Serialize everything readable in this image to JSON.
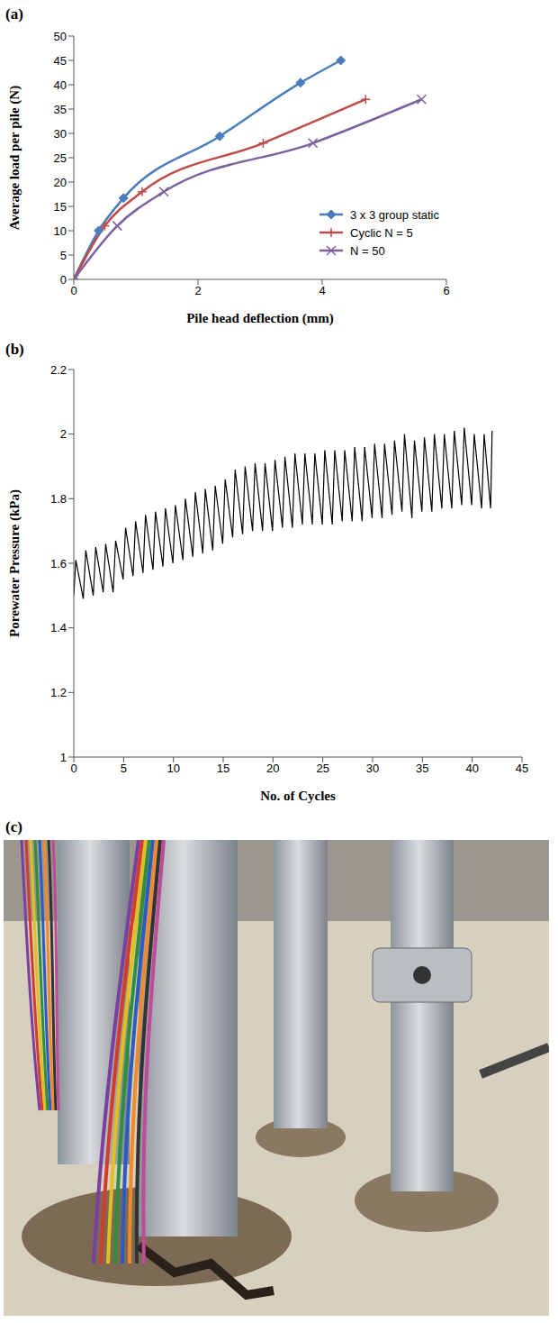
{
  "chart_data": [
    {
      "panel": "(a)",
      "type": "line",
      "x_label": "Pile head deflection (mm)",
      "y_label": "Average load per pile (N)",
      "xlim": [
        0,
        6
      ],
      "xticks": [
        0,
        2,
        4,
        6
      ],
      "ylim": [
        0,
        50
      ],
      "yticks": [
        0,
        5,
        10,
        15,
        20,
        25,
        30,
        35,
        40,
        45,
        50
      ],
      "grid": false,
      "legend": "lower right",
      "series": [
        {
          "name": "3 x 3 group static",
          "color": "#4a7ebb",
          "marker": "diamond",
          "line_style": "smooth",
          "x": [
            0,
            0.4,
            0.8,
            2.35,
            3.65,
            4.3
          ],
          "values": [
            0,
            10,
            16.7,
            29.4,
            40.4,
            45
          ]
        },
        {
          "name": "Cyclic N = 5",
          "color": "#be4b48",
          "marker": "plus",
          "line_style": "smooth",
          "x": [
            0,
            0.5,
            1.1,
            3.05,
            4.7
          ],
          "values": [
            0,
            11,
            18,
            28,
            37
          ]
        },
        {
          "name": "N = 50",
          "color": "#7d60a0",
          "marker": "x",
          "line_style": "smooth",
          "x": [
            0,
            0.7,
            1.45,
            3.85,
            5.6
          ],
          "values": [
            0,
            11,
            18,
            28,
            37
          ]
        }
      ]
    },
    {
      "panel": "(b)",
      "type": "line",
      "x_label": "No. of Cycles",
      "y_label": "Porewater Pressure (kPa)",
      "xlim": [
        0,
        45
      ],
      "xticks": [
        0,
        5,
        10,
        15,
        20,
        25,
        30,
        35,
        40,
        45
      ],
      "ylim": [
        1,
        2.2
      ],
      "yticks": [
        1,
        1.2,
        1.4,
        1.6,
        1.8,
        2,
        2.2
      ],
      "grid": false,
      "series": [
        {
          "color": "#000000",
          "marker": "none",
          "line_style": "solid",
          "x": [
            0,
            0.2,
            0.95,
            1.2,
            1.95,
            2.2,
            2.95,
            3.2,
            3.95,
            4.2,
            4.95,
            5.2,
            5.95,
            6.2,
            6.95,
            7.2,
            7.95,
            8.2,
            8.95,
            9.2,
            9.95,
            10.2,
            10.95,
            11.2,
            11.95,
            12.2,
            12.95,
            13.2,
            13.95,
            14.2,
            14.95,
            15.2,
            15.95,
            16.2,
            16.95,
            17.2,
            17.95,
            18.2,
            18.95,
            19.2,
            19.95,
            20.2,
            20.95,
            21.2,
            21.95,
            22.2,
            22.95,
            23.2,
            23.95,
            24.2,
            24.95,
            25.2,
            25.95,
            26.2,
            26.95,
            27.2,
            27.95,
            28.2,
            28.95,
            29.2,
            29.95,
            30.2,
            30.95,
            31.2,
            31.95,
            32.2,
            32.95,
            33.2,
            33.95,
            34.2,
            34.95,
            35.2,
            35.95,
            36.2,
            36.95,
            37.2,
            37.95,
            38.2,
            38.95,
            39.2,
            39.95,
            40.2,
            40.95,
            41.2,
            41.85,
            42
          ],
          "values": [
            1.5,
            1.61,
            1.49,
            1.64,
            1.5,
            1.65,
            1.51,
            1.66,
            1.51,
            1.67,
            1.55,
            1.71,
            1.56,
            1.73,
            1.57,
            1.75,
            1.58,
            1.76,
            1.59,
            1.77,
            1.6,
            1.78,
            1.61,
            1.8,
            1.62,
            1.82,
            1.63,
            1.83,
            1.64,
            1.84,
            1.66,
            1.86,
            1.68,
            1.89,
            1.69,
            1.9,
            1.7,
            1.91,
            1.7,
            1.91,
            1.7,
            1.92,
            1.71,
            1.93,
            1.71,
            1.94,
            1.72,
            1.94,
            1.72,
            1.94,
            1.72,
            1.95,
            1.72,
            1.95,
            1.73,
            1.95,
            1.73,
            1.96,
            1.73,
            1.96,
            1.74,
            1.97,
            1.74,
            1.97,
            1.75,
            1.98,
            1.76,
            2.0,
            1.74,
            1.98,
            1.76,
            1.99,
            1.76,
            2.0,
            1.77,
            2.0,
            1.77,
            2.01,
            1.78,
            2.02,
            1.78,
            2.0,
            1.77,
            2.0,
            1.77,
            2.01
          ]
        }
      ]
    }
  ],
  "photo": {
    "panel": "(c)"
  }
}
